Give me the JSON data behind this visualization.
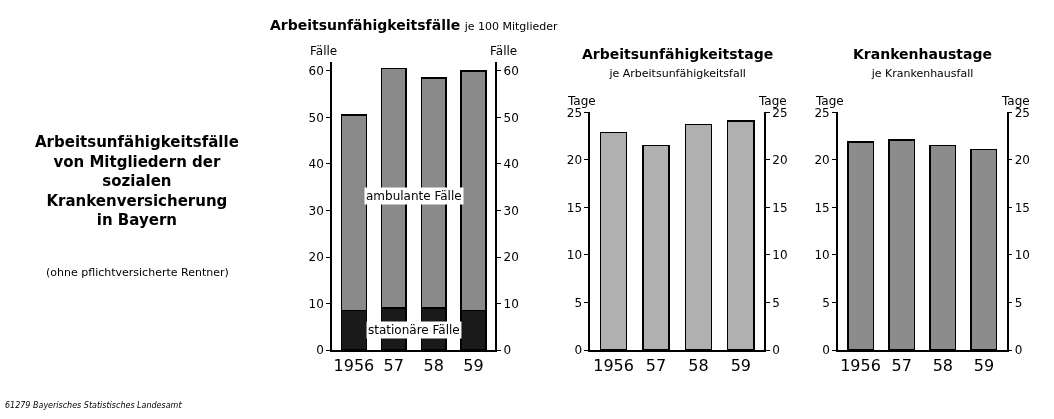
{
  "chart_data": [
    {
      "type": "other",
      "title": "Arbeitsunfähigkeitsfälle von Mitgliedern der sozialen Krankenversicherung in Bayern",
      "subtitle": "(ohne pflichtversicherte Rentner)",
      "annotations": [
        "61279 Bayerisches Statistisches Landesamt"
      ]
    },
    {
      "type": "bar",
      "title": "Arbeitsunfähigkeitsfälle",
      "subtitle": "je 100 Mitglieder",
      "ylabel": "Fälle",
      "y2label": "Fälle",
      "categories": [
        "1956",
        "57",
        "58",
        "59"
      ],
      "stacked": true,
      "series": [
        {
          "name": "stationäre Fälle",
          "color": "#1a1a1a",
          "values": [
            8.5,
            9,
            9,
            8.5
          ]
        },
        {
          "name": "ambulante Fälle",
          "color": "#8a8a8a",
          "values": [
            42,
            51.5,
            49.5,
            51.5
          ]
        }
      ],
      "ylim": [
        0,
        62
      ],
      "yticks": [
        0,
        10,
        20,
        30,
        40,
        50,
        60
      ],
      "y2lim": [
        0,
        62
      ],
      "y2ticks": [
        0,
        10,
        20,
        30,
        40,
        50,
        60
      ]
    },
    {
      "type": "bar",
      "title": "Arbeitsunfähigkeitstage",
      "subtitle": "je Arbeitsunfähigkeitsfall",
      "ylabel": "Tage",
      "y2label": "Tage",
      "categories": [
        "1956",
        "57",
        "58",
        "59"
      ],
      "series": [
        {
          "color": "#b0b0b0",
          "values": [
            22.9,
            21.5,
            23.7,
            24.1
          ]
        }
      ],
      "ylim": [
        0,
        25
      ],
      "yticks": [
        0,
        5,
        10,
        15,
        20,
        25
      ],
      "y2lim": [
        0,
        25
      ],
      "y2ticks": [
        0,
        5,
        10,
        15,
        20,
        25
      ]
    },
    {
      "type": "bar",
      "title": "Krankenhaustage",
      "subtitle": "je Krankenhausfall",
      "ylabel": "Tage",
      "y2label": "Tage",
      "categories": [
        "1956",
        "57",
        "58",
        "59"
      ],
      "series": [
        {
          "color": "#8c8c8c",
          "values": [
            21.9,
            22.1,
            21.5,
            21.1
          ]
        }
      ],
      "ylim": [
        0,
        25
      ],
      "yticks": [
        0,
        5,
        10,
        15,
        20,
        25
      ],
      "y2lim": [
        0,
        25
      ],
      "y2ticks": [
        0,
        5,
        10,
        15,
        20,
        25
      ]
    }
  ]
}
